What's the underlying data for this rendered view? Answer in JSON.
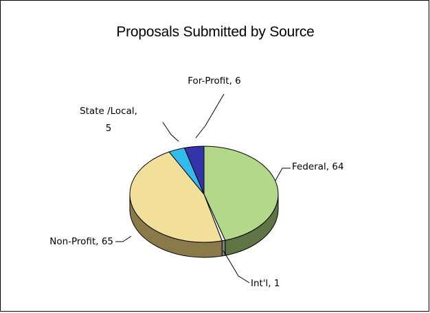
{
  "chart_data": {
    "type": "pie",
    "title": "Proposals Submitted by Source",
    "style": "3d",
    "slices": [
      {
        "label": "Federal",
        "value": 64,
        "text_lines": [
          "Federal, 64"
        ],
        "color": "#b4d88a",
        "side_color": "#5f7545"
      },
      {
        "label": "Int'l",
        "value": 1,
        "text_lines": [
          "Int'l, 1"
        ],
        "color": "#eeeeee",
        "side_color": "#808080"
      },
      {
        "label": "Non-Profit",
        "value": 65,
        "text_lines": [
          "Non-Profit, 65"
        ],
        "color": "#f1df9a",
        "side_color": "#8a7a4a"
      },
      {
        "label": "State /Local",
        "value": 5,
        "text_lines": [
          "State /Local,",
          "5"
        ],
        "color": "#33bbee",
        "side_color": "#1a6a8a"
      },
      {
        "label": "For-Profit",
        "value": 6,
        "text_lines": [
          "For-Profit, 6"
        ],
        "color": "#3333aa",
        "side_color": "#1a1a5a"
      }
    ]
  }
}
